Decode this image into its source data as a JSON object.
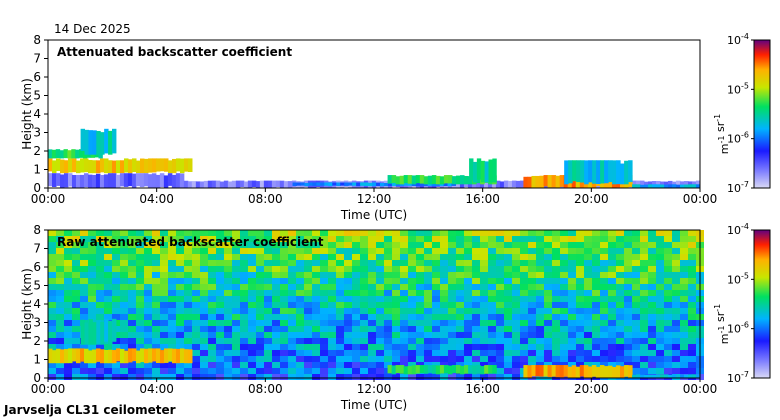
{
  "date_label": "14 Dec 2025",
  "footer_label": "Jarvselja CL31 ceilometer",
  "chart_data": [
    {
      "type": "heatmap",
      "title": "Attenuated backscatter coefficient",
      "xlabel": "Time (UTC)",
      "ylabel": "Height (km)",
      "xlim_hours": [
        0,
        24
      ],
      "ylim": [
        0,
        8
      ],
      "xticks": [
        "00:00",
        "04:00",
        "08:00",
        "12:00",
        "16:00",
        "20:00",
        "00:00"
      ],
      "yticks": [
        "0",
        "1",
        "2",
        "3",
        "4",
        "5",
        "6",
        "7",
        "8"
      ],
      "colorbar": {
        "scale": "log",
        "min_exp": -7,
        "max_exp": -4,
        "label": "m-1 sr-1",
        "ticks": [
          "10-7",
          "10-6",
          "10-5",
          "10-4"
        ]
      },
      "noise_level": 0,
      "features": [
        {
          "kind": "layer",
          "t0": 0.0,
          "t1": 5.3,
          "hbase": 0.8,
          "htop": 1.6,
          "intensity": 0.75
        },
        {
          "kind": "layer",
          "t0": 0.0,
          "t1": 2.0,
          "hbase": 1.6,
          "htop": 2.1,
          "intensity": 0.55
        },
        {
          "kind": "layer",
          "t0": 1.2,
          "t1": 2.5,
          "hbase": 1.8,
          "htop": 3.2,
          "intensity": 0.45
        },
        {
          "kind": "layer",
          "t0": 0.0,
          "t1": 5.0,
          "hbase": 0.0,
          "htop": 0.8,
          "intensity": 0.15
        },
        {
          "kind": "layer",
          "t0": 5.0,
          "t1": 24.0,
          "hbase": 0.0,
          "htop": 0.4,
          "intensity": 0.12
        },
        {
          "kind": "layer",
          "t0": 9.0,
          "t1": 15.0,
          "hbase": 0.1,
          "htop": 0.3,
          "intensity": 0.35
        },
        {
          "kind": "layer",
          "t0": 12.5,
          "t1": 16.5,
          "hbase": 0.2,
          "htop": 0.7,
          "intensity": 0.55
        },
        {
          "kind": "layer",
          "t0": 15.5,
          "t1": 16.5,
          "hbase": 0.3,
          "htop": 1.6,
          "intensity": 0.5
        },
        {
          "kind": "layer",
          "t0": 17.5,
          "t1": 21.5,
          "hbase": 0.0,
          "htop": 0.7,
          "intensity": 0.8
        },
        {
          "kind": "layer",
          "t0": 19.0,
          "t1": 21.5,
          "hbase": 0.2,
          "htop": 1.5,
          "intensity": 0.45
        },
        {
          "kind": "layer",
          "t0": 21.5,
          "t1": 24.0,
          "hbase": 0.0,
          "htop": 0.2,
          "intensity": 0.4
        }
      ]
    },
    {
      "type": "heatmap",
      "title": "Raw attenuated backscatter coefficient",
      "xlabel": "Time (UTC)",
      "ylabel": "Height (km)",
      "xlim_hours": [
        0,
        24
      ],
      "ylim": [
        0,
        8
      ],
      "xticks": [
        "00:00",
        "04:00",
        "08:00",
        "12:00",
        "16:00",
        "20:00",
        "00:00"
      ],
      "yticks": [
        "0",
        "1",
        "2",
        "3",
        "4",
        "5",
        "6",
        "7",
        "8"
      ],
      "colorbar": {
        "scale": "log",
        "min_exp": -7,
        "max_exp": -4,
        "label": "m-1 sr-1",
        "ticks": [
          "10-7",
          "10-6",
          "10-5",
          "10-4"
        ]
      },
      "noise_level": 1,
      "features": [
        {
          "kind": "layer",
          "t0": 0.0,
          "t1": 5.3,
          "hbase": 0.8,
          "htop": 1.6,
          "intensity": 0.75
        },
        {
          "kind": "layer",
          "t0": 1.2,
          "t1": 2.5,
          "hbase": 1.8,
          "htop": 3.2,
          "intensity": 0.45
        },
        {
          "kind": "layer",
          "t0": 12.5,
          "t1": 16.5,
          "hbase": 0.2,
          "htop": 0.7,
          "intensity": 0.55
        },
        {
          "kind": "layer",
          "t0": 17.5,
          "t1": 21.5,
          "hbase": 0.0,
          "htop": 0.7,
          "intensity": 0.8
        },
        {
          "kind": "layer",
          "t0": 21.5,
          "t1": 24.0,
          "hbase": 0.0,
          "htop": 0.2,
          "intensity": 0.4
        }
      ]
    }
  ]
}
